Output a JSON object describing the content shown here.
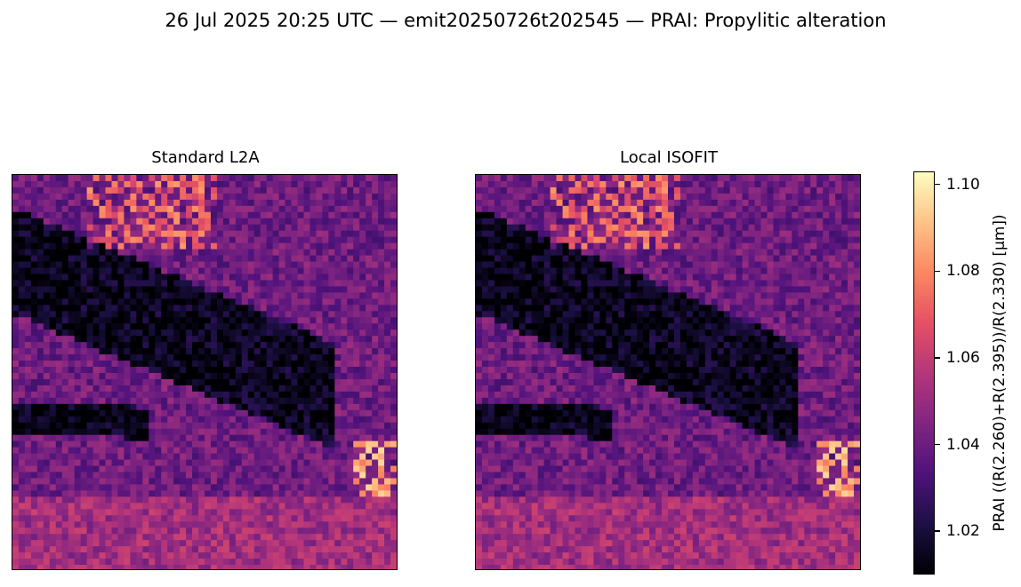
{
  "figure": {
    "suptitle": "26 Jul 2025 20:25 UTC — emit20250726t202545 — PRAI: Propylitic alteration"
  },
  "chart_data": {
    "type": "heatmap",
    "panels": [
      {
        "title": "Standard L2A"
      },
      {
        "title": "Local ISOFIT"
      }
    ],
    "colormap": "magma",
    "colorbar": {
      "label": "PRAI  ((R(2.260)+R(2.395))/R(2.330)  [µm])",
      "range": [
        1.01,
        1.103
      ],
      "ticks": [
        {
          "value": 1.02,
          "label": "1.02"
        },
        {
          "value": 1.04,
          "label": "1.04"
        },
        {
          "value": 1.06,
          "label": "1.06"
        },
        {
          "value": 1.08,
          "label": "1.08"
        },
        {
          "value": 1.1,
          "label": "1.10"
        }
      ]
    },
    "axes_visible": false
  }
}
